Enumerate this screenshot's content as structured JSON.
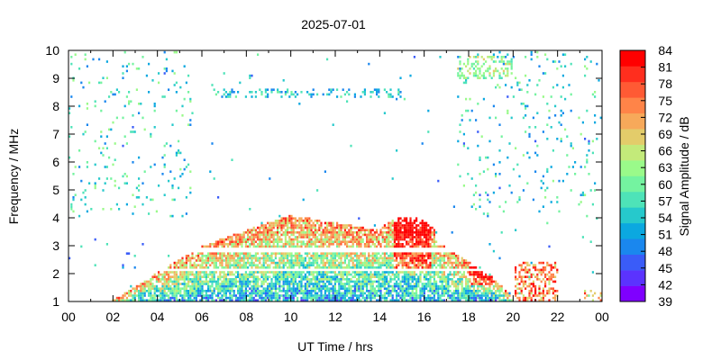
{
  "chart_data": {
    "type": "heatmap",
    "title": "2025-07-01",
    "xlabel": "UT Time / hrs",
    "ylabel": "Frequency / MHz",
    "colorbar_label": "Signal Amplitude / dB",
    "xlim": [
      0,
      24
    ],
    "ylim": [
      1,
      10
    ],
    "x_ticks": [
      "00",
      "02",
      "04",
      "06",
      "08",
      "10",
      "12",
      "14",
      "16",
      "18",
      "20",
      "22",
      "00"
    ],
    "y_ticks": [
      "1",
      "2",
      "3",
      "4",
      "5",
      "6",
      "7",
      "8",
      "9",
      "10"
    ],
    "color_range": [
      39,
      84
    ],
    "colorbar_ticks": [
      "84",
      "81",
      "78",
      "75",
      "72",
      "69",
      "66",
      "63",
      "60",
      "57",
      "54",
      "51",
      "48",
      "45",
      "42",
      "39"
    ],
    "colormap": [
      "#7f00ff",
      "#5b33fe",
      "#3a5cf8",
      "#1a87ee",
      "#0ba8e0",
      "#26c9cc",
      "#4ee3b8",
      "#74f3a0",
      "#9afa8a",
      "#c3ea7a",
      "#e3cc6a",
      "#f7a95a",
      "#ff8448",
      "#ff5a34",
      "#ff2e1e",
      "#ff0000"
    ],
    "grid": false,
    "description_of_data": [
      {
        "feature": "daytime ionospheric echo region",
        "x_range_hours": [
          2,
          20
        ],
        "freq_range_mhz": [
          1,
          4.1
        ],
        "peak_freq_mhz": 4.1,
        "peak_time_hours": 10,
        "amplitude_db_range": [
          45,
          84
        ]
      },
      {
        "feature": "strong evening enhancement",
        "x_range_hours": [
          14.5,
          16.5
        ],
        "freq_range_mhz": [
          1.8,
          4.0
        ],
        "amplitude_db_range": [
          72,
          84
        ]
      },
      {
        "feature": "post-sunset spread echo",
        "x_range_hours": [
          18,
          19.2
        ],
        "freq_range_mhz": [
          1.6,
          3.2
        ],
        "amplitude_db_range": [
          66,
          84
        ]
      },
      {
        "feature": "late night patch",
        "x_range_hours": [
          20,
          22
        ],
        "freq_range_mhz": [
          1,
          2.4
        ],
        "amplitude_db_range": [
          63,
          84
        ]
      },
      {
        "feature": "sporadic interference band",
        "x_range_hours": [
          6.5,
          15
        ],
        "freq_range_mhz": [
          8.3,
          8.6
        ],
        "amplitude_db_range": [
          45,
          60
        ]
      }
    ]
  }
}
